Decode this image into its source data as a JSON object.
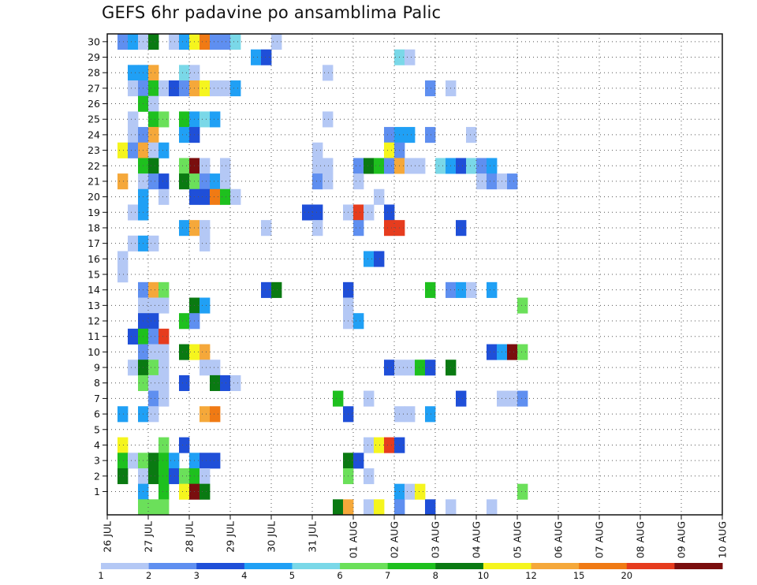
{
  "chart_data": {
    "type": "heatmap",
    "title": "GEFS 6hr padavine po ansamblima Palic",
    "xlabel": "",
    "ylabel": "",
    "x_tick_labels": [
      "26 JUL",
      "27 JUL",
      "28 JUL",
      "29 JUL",
      "30 JUL",
      "31 JUL",
      "01 AUG",
      "02 AUG",
      "03 AUG",
      "04 AUG",
      "05 AUG",
      "06 AUG",
      "07 AUG",
      "08 AUG",
      "09 AUG",
      "10 AUG"
    ],
    "x_range_days": [
      0,
      15
    ],
    "y_tick_labels": [
      "1",
      "2",
      "3",
      "4",
      "5",
      "6",
      "7",
      "8",
      "9",
      "10",
      "11",
      "12",
      "13",
      "14",
      "15",
      "16",
      "17",
      "18",
      "19",
      "20",
      "21",
      "22",
      "23",
      "24",
      "25",
      "26",
      "27",
      "28",
      "29",
      "30"
    ],
    "members": 30,
    "steps_per_day": 4,
    "grid": "dotted",
    "legend": {
      "placement": "bottom",
      "labels": [
        "1",
        "2",
        "3",
        "4",
        "5",
        "6",
        "7",
        "8",
        "10",
        "12",
        "15",
        "20"
      ],
      "colors": [
        "#b4c8f5",
        "#5f8ff0",
        "#1f4fd8",
        "#20a0f5",
        "#7ad8e8",
        "#6be05a",
        "#1ec01e",
        "#0a7a12",
        "#f5f51e",
        "#f5a83a",
        "#f07a14",
        "#e63c1e",
        "#7a0e0e"
      ]
    },
    "cells": [
      [
        30,
        1,
        1
      ],
      [
        30,
        2,
        3
      ],
      [
        30,
        3,
        0
      ],
      [
        30,
        4,
        7
      ],
      [
        30,
        6,
        0
      ],
      [
        30,
        7,
        3
      ],
      [
        30,
        8,
        8
      ],
      [
        30,
        9,
        10
      ],
      [
        30,
        10,
        1
      ],
      [
        30,
        11,
        1
      ],
      [
        30,
        12,
        4
      ],
      [
        30,
        16,
        0
      ],
      [
        29,
        14,
        3
      ],
      [
        29,
        15,
        2
      ],
      [
        29,
        28,
        4
      ],
      [
        29,
        29,
        0
      ],
      [
        28,
        2,
        3
      ],
      [
        28,
        3,
        3
      ],
      [
        28,
        4,
        9
      ],
      [
        28,
        7,
        4
      ],
      [
        28,
        8,
        0
      ],
      [
        28,
        21,
        0
      ],
      [
        27,
        2,
        0
      ],
      [
        27,
        3,
        1
      ],
      [
        27,
        4,
        6
      ],
      [
        27,
        5,
        0
      ],
      [
        27,
        6,
        2
      ],
      [
        27,
        7,
        1
      ],
      [
        27,
        8,
        9
      ],
      [
        27,
        9,
        8
      ],
      [
        27,
        10,
        0
      ],
      [
        27,
        11,
        0
      ],
      [
        27,
        12,
        3
      ],
      [
        27,
        31,
        1
      ],
      [
        27,
        33,
        0
      ],
      [
        26,
        3,
        6
      ],
      [
        26,
        4,
        0
      ],
      [
        25,
        2,
        0
      ],
      [
        25,
        4,
        6
      ],
      [
        25,
        5,
        5
      ],
      [
        25,
        7,
        6
      ],
      [
        25,
        8,
        3
      ],
      [
        25,
        9,
        4
      ],
      [
        25,
        10,
        3
      ],
      [
        25,
        21,
        0
      ],
      [
        24,
        2,
        0
      ],
      [
        24,
        3,
        1
      ],
      [
        24,
        4,
        9
      ],
      [
        24,
        7,
        3
      ],
      [
        24,
        8,
        2
      ],
      [
        24,
        27,
        1
      ],
      [
        24,
        28,
        3
      ],
      [
        24,
        29,
        3
      ],
      [
        24,
        31,
        1
      ],
      [
        24,
        35,
        0
      ],
      [
        23,
        1,
        8
      ],
      [
        23,
        2,
        1
      ],
      [
        23,
        3,
        9
      ],
      [
        23,
        4,
        0
      ],
      [
        23,
        5,
        3
      ],
      [
        23,
        20,
        0
      ],
      [
        23,
        27,
        8
      ],
      [
        23,
        28,
        1
      ],
      [
        22,
        3,
        6
      ],
      [
        22,
        4,
        7
      ],
      [
        22,
        7,
        5
      ],
      [
        22,
        8,
        12
      ],
      [
        22,
        9,
        0
      ],
      [
        22,
        11,
        0
      ],
      [
        22,
        20,
        0
      ],
      [
        22,
        21,
        0
      ],
      [
        22,
        24,
        1
      ],
      [
        22,
        25,
        7
      ],
      [
        22,
        26,
        6
      ],
      [
        22,
        27,
        1
      ],
      [
        22,
        28,
        9
      ],
      [
        22,
        29,
        0
      ],
      [
        22,
        30,
        0
      ],
      [
        22,
        32,
        4
      ],
      [
        22,
        33,
        3
      ],
      [
        22,
        34,
        2
      ],
      [
        22,
        35,
        4
      ],
      [
        22,
        36,
        1
      ],
      [
        22,
        37,
        3
      ],
      [
        21,
        1,
        9
      ],
      [
        21,
        3,
        0
      ],
      [
        21,
        4,
        1
      ],
      [
        21,
        5,
        2
      ],
      [
        21,
        7,
        7
      ],
      [
        21,
        8,
        5
      ],
      [
        21,
        9,
        1
      ],
      [
        21,
        10,
        3
      ],
      [
        21,
        11,
        0
      ],
      [
        21,
        20,
        1
      ],
      [
        21,
        21,
        0
      ],
      [
        21,
        24,
        0
      ],
      [
        21,
        36,
        0
      ],
      [
        21,
        37,
        1
      ],
      [
        21,
        38,
        0
      ],
      [
        21,
        39,
        1
      ],
      [
        20,
        3,
        3
      ],
      [
        20,
        5,
        0
      ],
      [
        20,
        8,
        2
      ],
      [
        20,
        9,
        2
      ],
      [
        20,
        10,
        10
      ],
      [
        20,
        11,
        6
      ],
      [
        20,
        12,
        0
      ],
      [
        20,
        26,
        0
      ],
      [
        19,
        2,
        0
      ],
      [
        19,
        3,
        3
      ],
      [
        19,
        19,
        2
      ],
      [
        19,
        20,
        2
      ],
      [
        19,
        23,
        0
      ],
      [
        19,
        24,
        11
      ],
      [
        19,
        25,
        0
      ],
      [
        19,
        27,
        2
      ],
      [
        18,
        7,
        3
      ],
      [
        18,
        8,
        9
      ],
      [
        18,
        9,
        0
      ],
      [
        18,
        15,
        0
      ],
      [
        18,
        20,
        0
      ],
      [
        18,
        24,
        1
      ],
      [
        18,
        27,
        11
      ],
      [
        18,
        28,
        11
      ],
      [
        18,
        34,
        2
      ],
      [
        17,
        2,
        0
      ],
      [
        17,
        3,
        3
      ],
      [
        17,
        4,
        0
      ],
      [
        17,
        9,
        0
      ],
      [
        16,
        1,
        0
      ],
      [
        16,
        25,
        3
      ],
      [
        16,
        26,
        2
      ],
      [
        15,
        1,
        0
      ],
      [
        14,
        3,
        1
      ],
      [
        14,
        4,
        9
      ],
      [
        14,
        5,
        5
      ],
      [
        14,
        15,
        2
      ],
      [
        14,
        16,
        7
      ],
      [
        14,
        23,
        2
      ],
      [
        14,
        31,
        6
      ],
      [
        14,
        33,
        1
      ],
      [
        14,
        34,
        3
      ],
      [
        14,
        35,
        0
      ],
      [
        14,
        37,
        3
      ],
      [
        13,
        3,
        0
      ],
      [
        13,
        4,
        0
      ],
      [
        13,
        5,
        0
      ],
      [
        13,
        8,
        7
      ],
      [
        13,
        9,
        3
      ],
      [
        13,
        23,
        0
      ],
      [
        13,
        40,
        5
      ],
      [
        12,
        3,
        2
      ],
      [
        12,
        4,
        2
      ],
      [
        12,
        7,
        6
      ],
      [
        12,
        8,
        1
      ],
      [
        12,
        23,
        0
      ],
      [
        12,
        24,
        3
      ],
      [
        11,
        2,
        2
      ],
      [
        11,
        3,
        6
      ],
      [
        11,
        4,
        1
      ],
      [
        11,
        5,
        11
      ],
      [
        10,
        3,
        1
      ],
      [
        10,
        4,
        0
      ],
      [
        10,
        5,
        0
      ],
      [
        10,
        7,
        7
      ],
      [
        10,
        8,
        8
      ],
      [
        10,
        9,
        9
      ],
      [
        10,
        37,
        2
      ],
      [
        10,
        38,
        3
      ],
      [
        10,
        39,
        12
      ],
      [
        10,
        40,
        5
      ],
      [
        9,
        2,
        0
      ],
      [
        9,
        3,
        7
      ],
      [
        9,
        4,
        5
      ],
      [
        9,
        5,
        0
      ],
      [
        9,
        9,
        0
      ],
      [
        9,
        10,
        0
      ],
      [
        9,
        27,
        2
      ],
      [
        9,
        28,
        0
      ],
      [
        9,
        29,
        0
      ],
      [
        9,
        30,
        6
      ],
      [
        9,
        31,
        2
      ],
      [
        9,
        33,
        7
      ],
      [
        8,
        3,
        5
      ],
      [
        8,
        4,
        0
      ],
      [
        8,
        5,
        0
      ],
      [
        8,
        7,
        2
      ],
      [
        8,
        10,
        7
      ],
      [
        8,
        11,
        2
      ],
      [
        8,
        12,
        0
      ],
      [
        7,
        4,
        1
      ],
      [
        7,
        5,
        0
      ],
      [
        7,
        22,
        6
      ],
      [
        7,
        25,
        0
      ],
      [
        7,
        34,
        2
      ],
      [
        7,
        38,
        0
      ],
      [
        7,
        39,
        0
      ],
      [
        7,
        40,
        1
      ],
      [
        6,
        1,
        3
      ],
      [
        6,
        3,
        3
      ],
      [
        6,
        4,
        0
      ],
      [
        6,
        9,
        9
      ],
      [
        6,
        10,
        10
      ],
      [
        6,
        23,
        2
      ],
      [
        6,
        28,
        0
      ],
      [
        6,
        29,
        0
      ],
      [
        6,
        31,
        3
      ],
      [
        4,
        1,
        8
      ],
      [
        4,
        5,
        5
      ],
      [
        4,
        7,
        2
      ],
      [
        4,
        25,
        0
      ],
      [
        4,
        26,
        8
      ],
      [
        4,
        27,
        11
      ],
      [
        4,
        28,
        2
      ],
      [
        3,
        1,
        6
      ],
      [
        3,
        2,
        0
      ],
      [
        3,
        3,
        5
      ],
      [
        3,
        4,
        7
      ],
      [
        3,
        5,
        6
      ],
      [
        3,
        6,
        3
      ],
      [
        3,
        8,
        3
      ],
      [
        3,
        9,
        2
      ],
      [
        3,
        10,
        2
      ],
      [
        3,
        23,
        7
      ],
      [
        3,
        24,
        2
      ],
      [
        2,
        1,
        7
      ],
      [
        2,
        3,
        0
      ],
      [
        2,
        4,
        7
      ],
      [
        2,
        5,
        6
      ],
      [
        2,
        6,
        2
      ],
      [
        2,
        7,
        5
      ],
      [
        2,
        8,
        6
      ],
      [
        2,
        9,
        0
      ],
      [
        2,
        23,
        5
      ],
      [
        2,
        25,
        0
      ],
      [
        1,
        3,
        3
      ],
      [
        1,
        5,
        6
      ],
      [
        1,
        7,
        8
      ],
      [
        1,
        8,
        12
      ],
      [
        1,
        9,
        7
      ],
      [
        1,
        28,
        3
      ],
      [
        1,
        29,
        0
      ],
      [
        1,
        30,
        8
      ],
      [
        1,
        40,
        5
      ],
      [
        0,
        3,
        5
      ],
      [
        0,
        4,
        5
      ],
      [
        0,
        5,
        5
      ],
      [
        0,
        22,
        7
      ],
      [
        0,
        23,
        9
      ],
      [
        0,
        25,
        0
      ],
      [
        0,
        26,
        8
      ],
      [
        0,
        28,
        1
      ],
      [
        0,
        31,
        2
      ],
      [
        0,
        33,
        0
      ],
      [
        0,
        37,
        0
      ]
    ]
  }
}
